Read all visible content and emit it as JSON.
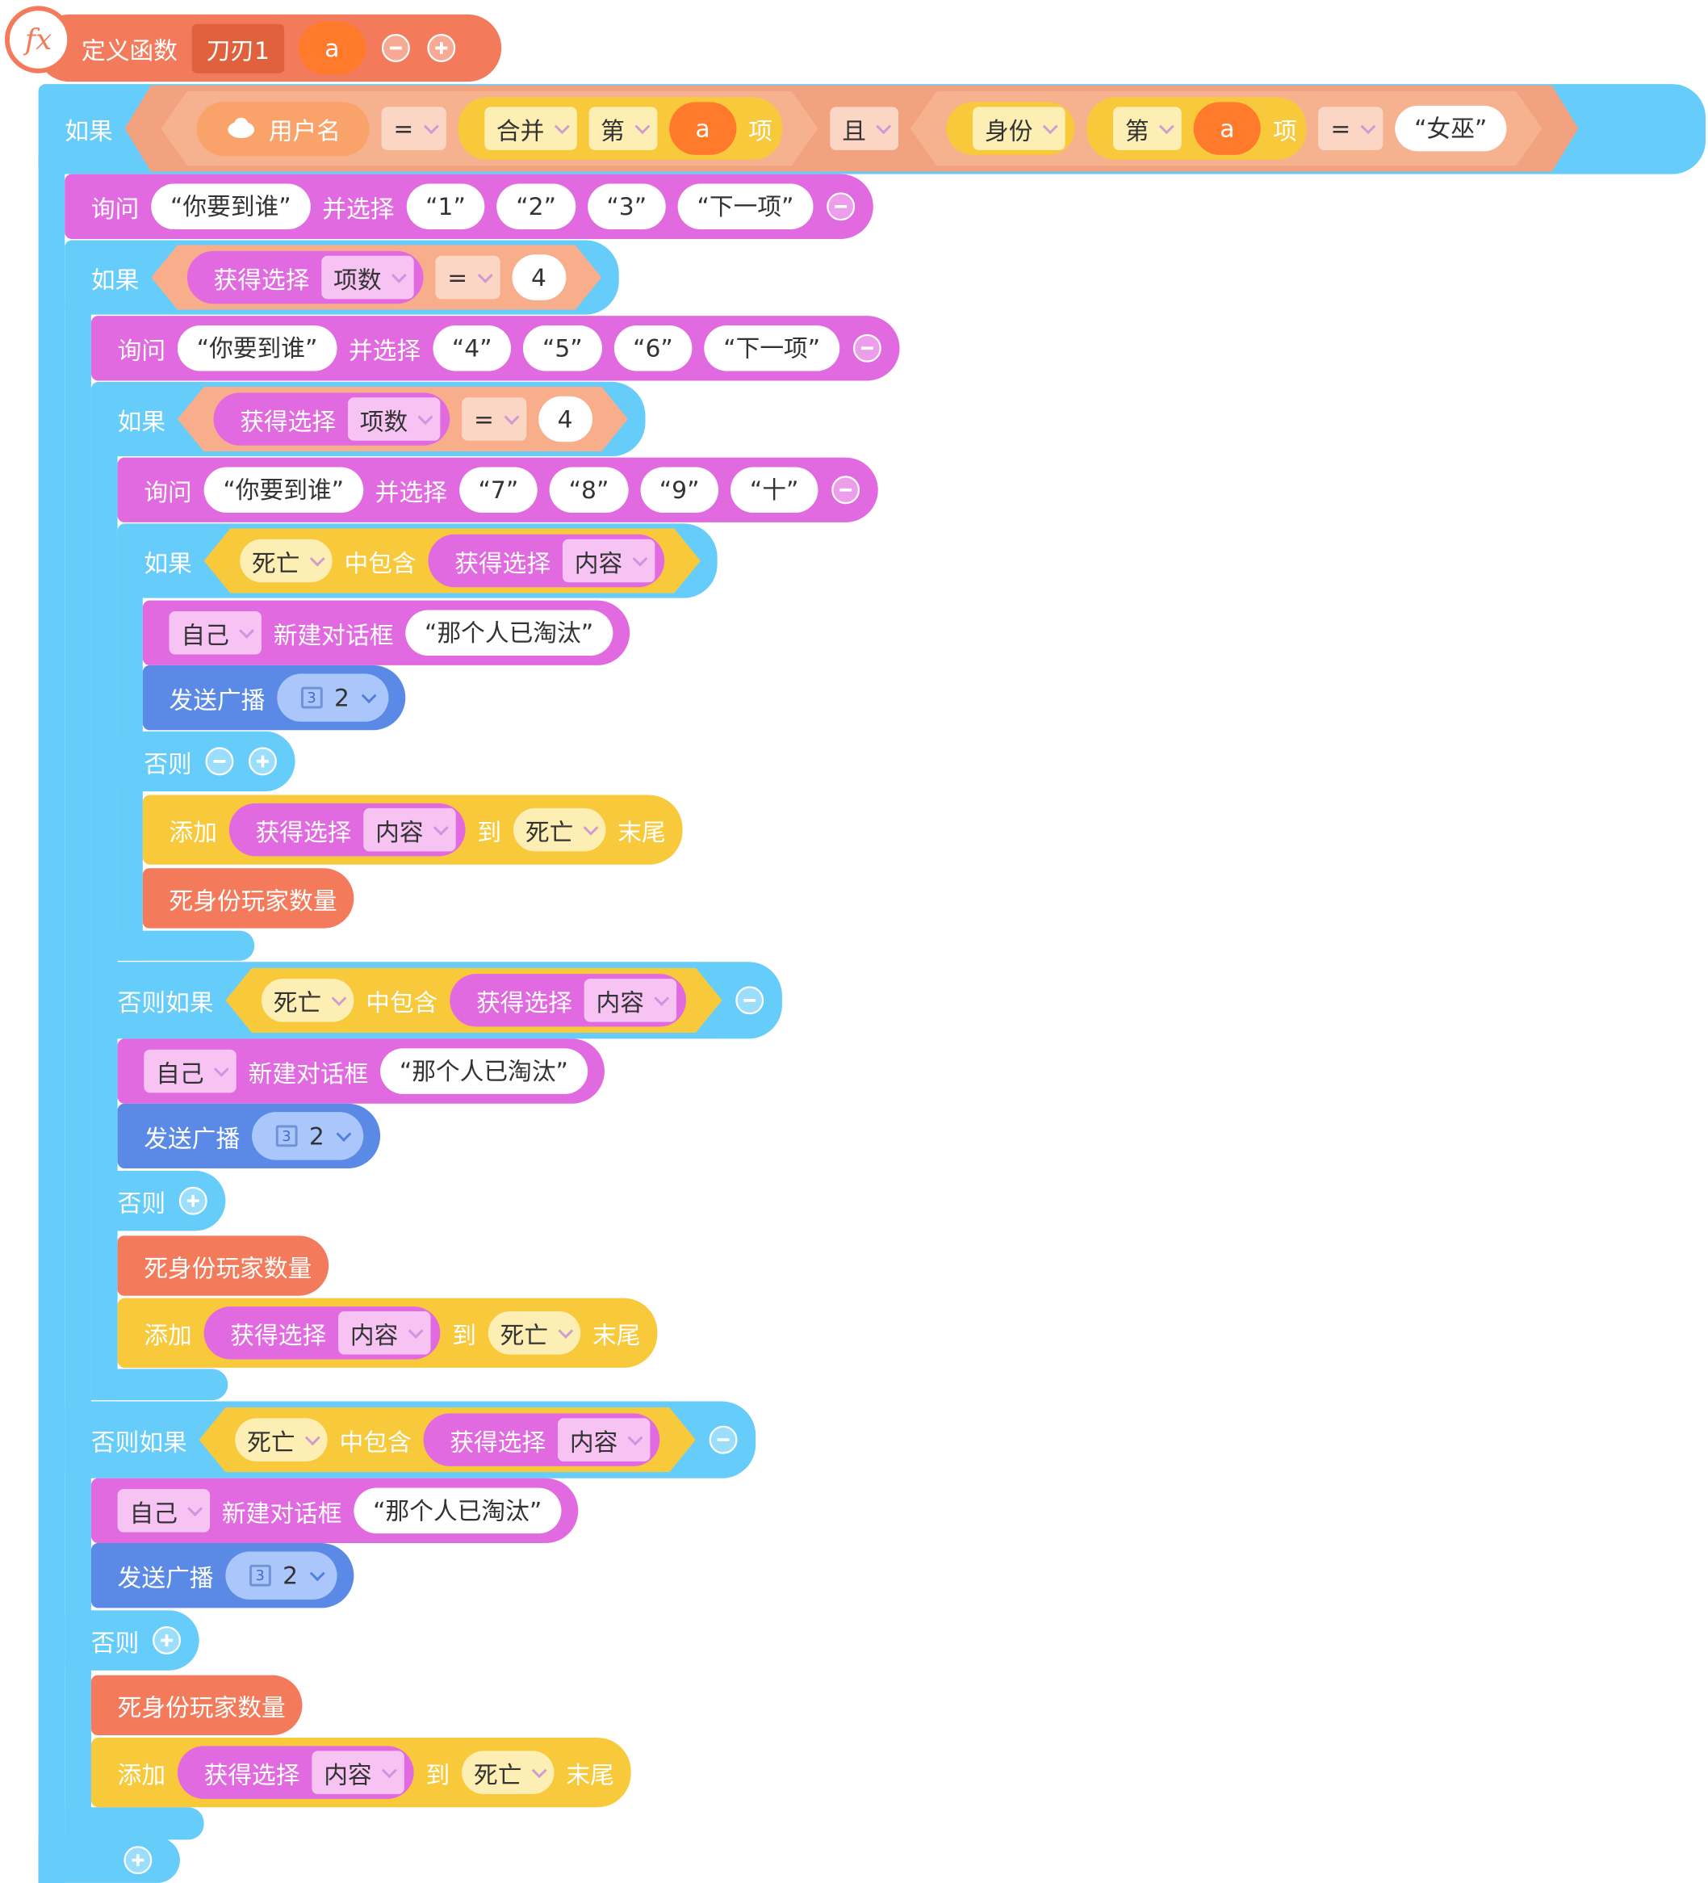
{
  "header": {
    "icon": "fx",
    "label": "定义函数",
    "name": "刀刃1",
    "param": "a"
  },
  "blocks": [
    [
      "如果",
      "用户名",
      "=",
      "合并",
      "第",
      "a",
      "项",
      "且",
      "身份",
      "第",
      "a",
      "项",
      "=",
      "“女巫”"
    ],
    [
      "询问",
      "“你要到谁”",
      "并选择",
      "“1”",
      "“2”",
      "“3”",
      "“下一项”"
    ],
    [
      "如果",
      "获得选择",
      "项数",
      "=",
      "4"
    ],
    [
      "询问",
      "“你要到谁”",
      "并选择",
      "“4”",
      "“5”",
      "“6”",
      "“下一项”"
    ],
    [
      "如果",
      "获得选择",
      "项数",
      "=",
      "4"
    ],
    [
      "询问",
      "“你要到谁”",
      "并选择",
      "“7”",
      "“8”",
      "“9”",
      "“十”"
    ],
    [
      "如果",
      "死亡",
      "中包含",
      "获得选择",
      "内容"
    ],
    [
      "自己",
      "新建对话框",
      "“那个人已淘汰”"
    ],
    [
      "发送广播",
      "3",
      "2"
    ],
    [
      "否则"
    ],
    [
      "添加",
      "获得选择",
      "内容",
      "到",
      "死亡",
      "末尾"
    ],
    [
      "死身份玩家数量"
    ],
    [
      "否则如果",
      "死亡",
      "中包含",
      "获得选择",
      "内容"
    ],
    [
      "自己",
      "新建对话框",
      "“那个人已淘汰”"
    ],
    [
      "发送广播",
      "3",
      "2"
    ],
    [
      "否则"
    ],
    [
      "死身份玩家数量"
    ],
    [
      "添加",
      "获得选择",
      "内容",
      "到",
      "死亡",
      "末尾"
    ],
    [
      "否则如果",
      "死亡",
      "中包含",
      "获得选择",
      "内容"
    ],
    [
      "自己",
      "新建对话框",
      "“那个人已淘汰”"
    ],
    [
      "发送广播",
      "3",
      "2"
    ],
    [
      "否则"
    ],
    [
      "死身份玩家数量"
    ],
    [
      "添加",
      "获得选择",
      "内容",
      "到",
      "死亡",
      "末尾"
    ]
  ]
}
